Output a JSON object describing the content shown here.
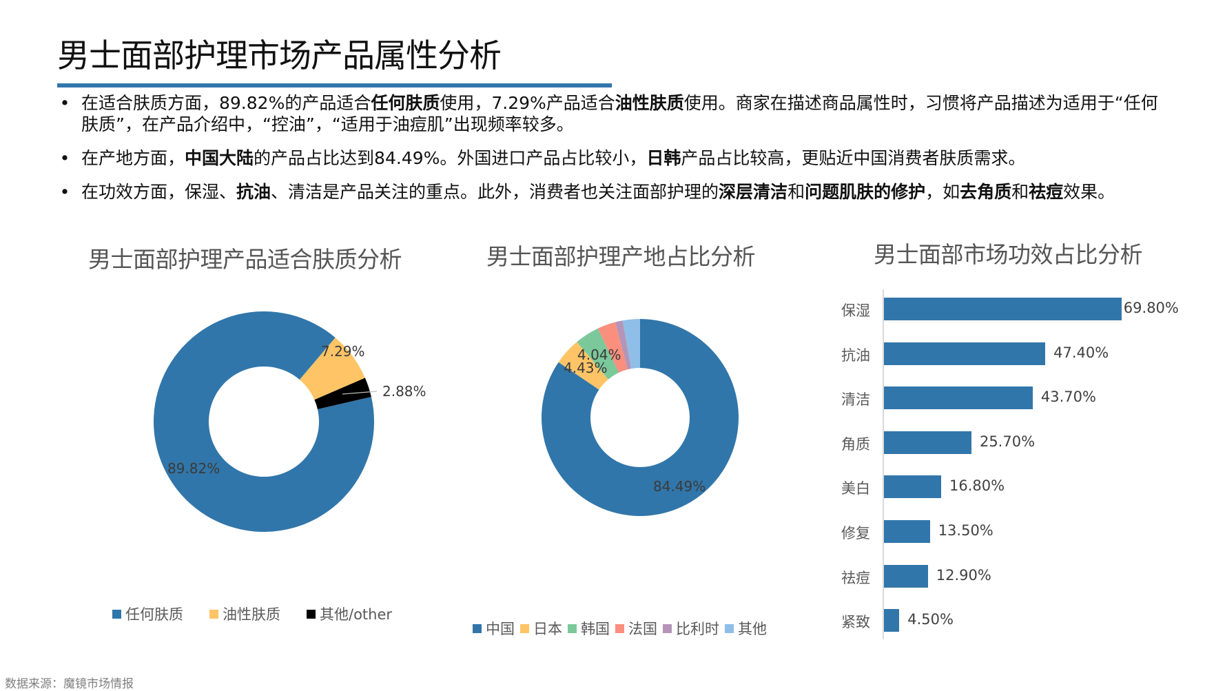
{
  "page": {
    "title": "男士面部护理市场产品属性分析",
    "accent_color": "#3176AA",
    "source": "数据来源：魔镜市场情报"
  },
  "bullets": [
    {
      "segments": [
        {
          "text": "在适合肤质方面，89.82%的产品适合",
          "bold": false
        },
        {
          "text": "任何肤质",
          "bold": true
        },
        {
          "text": "使用，7.29%产品适合",
          "bold": false
        },
        {
          "text": "油性肤质",
          "bold": true
        },
        {
          "text": "使用。商家在描述商品属性时，习惯将产品描述为适用于“任何肤质”，在产品介绍中，“控油”，“适用于油痘肌”出现频率较多。",
          "bold": false
        }
      ]
    },
    {
      "segments": [
        {
          "text": "在产地方面，",
          "bold": false
        },
        {
          "text": "中国大陆",
          "bold": true
        },
        {
          "text": "的产品占比达到84.49%。外国进口产品占比较小，",
          "bold": false
        },
        {
          "text": "日韩",
          "bold": true
        },
        {
          "text": "产品占比较高，更贴近中国消费者肤质需求。",
          "bold": false
        }
      ]
    },
    {
      "segments": [
        {
          "text": "在功效方面，保湿、",
          "bold": false
        },
        {
          "text": "抗油",
          "bold": true
        },
        {
          "text": "、清洁是产品关注的重点。此外，消费者也关注面部护理的",
          "bold": false
        },
        {
          "text": "深层清洁",
          "bold": true
        },
        {
          "text": "和",
          "bold": false
        },
        {
          "text": "问题肌肤的修护",
          "bold": true
        },
        {
          "text": "，如",
          "bold": false
        },
        {
          "text": "去角质",
          "bold": true
        },
        {
          "text": "和",
          "bold": false
        },
        {
          "text": "祛痘",
          "bold": true
        },
        {
          "text": "效果。",
          "bold": false
        }
      ]
    }
  ],
  "chart_data": [
    {
      "type": "pie",
      "variant": "donut",
      "title": "男士面部护理产品适合肤质分析",
      "categories": [
        "任何肤质",
        "油性肤质",
        "其他/other"
      ],
      "values": [
        89.82,
        7.29,
        2.88
      ],
      "labels": [
        "89.82%",
        "7.29%",
        "2.88%"
      ],
      "colors": [
        "#3176AA",
        "#FFC466",
        "#000000"
      ],
      "start_angle_deg": 77,
      "legend_position": "bottom"
    },
    {
      "type": "pie",
      "variant": "donut",
      "title": "男士面部护理产地占比分析",
      "categories": [
        "中国",
        "日本",
        "韩国",
        "法国",
        "比利时",
        "其他"
      ],
      "values": [
        84.49,
        4.43,
        4.04,
        3.0,
        1.2,
        2.84
      ],
      "labels": [
        "84.49%",
        "4.43%",
        "4.04%",
        "",
        "",
        ""
      ],
      "colors": [
        "#3176AA",
        "#FFC466",
        "#7BC89B",
        "#FA8F7E",
        "#B595B7",
        "#8FBEE8"
      ],
      "start_angle_deg": 0,
      "legend_position": "bottom"
    },
    {
      "type": "bar",
      "orientation": "horizontal",
      "title": "男士面部市场功效占比分析",
      "categories": [
        "保湿",
        "抗油",
        "清洁",
        "角质",
        "美白",
        "修复",
        "祛痘",
        "紧致"
      ],
      "values": [
        69.8,
        47.4,
        43.7,
        25.7,
        16.8,
        13.5,
        12.9,
        4.5
      ],
      "labels": [
        "69.80%",
        "47.40%",
        "43.70%",
        "25.70%",
        "16.80%",
        "13.50%",
        "12.90%",
        "4.50%"
      ],
      "color": "#3176AA",
      "xlabel": "",
      "ylabel": "",
      "grid": false
    }
  ]
}
